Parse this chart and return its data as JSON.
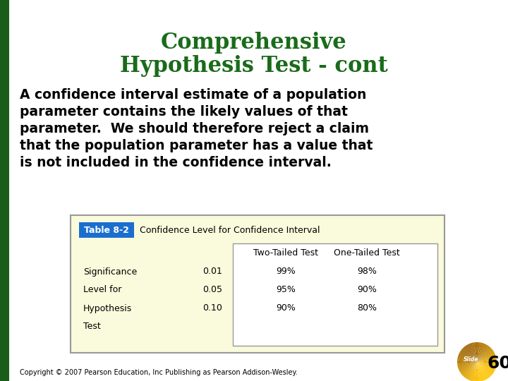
{
  "title_line1": "Comprehensive",
  "title_line2": "Hypothesis Test - cont",
  "title_color": "#1a6b1a",
  "body_text": "A confidence interval estimate of a population\nparameter contains the likely values of that\nparameter.  We should therefore reject a claim\nthat the population parameter has a value that\nis not included in the confidence interval.",
  "table_title_label": "Table 8-2",
  "table_title_label_bg": "#1a6fce",
  "table_title_label_color": "#ffffff",
  "table_title_text": "Confidence Level for Confidence Interval",
  "table_header_col1": "Two-Tailed Test",
  "table_header_col2": "One-Tailed Test",
  "table_rows": [
    [
      "Significance",
      "0.01",
      "99%",
      "98%"
    ],
    [
      "Level for",
      "0.05",
      "95%",
      "90%"
    ],
    [
      "Hypothesis",
      "0.10",
      "90%",
      "80%"
    ],
    [
      "Test",
      "",
      "",
      ""
    ]
  ],
  "table_bg": "#fafadc",
  "table_border": "#999999",
  "table_inner_bg": "#ffffff",
  "copyright": "Copyright © 2007 Pearson Education, Inc Publishing as Pearson Addison-Wesley.",
  "slide_label": "60",
  "background_color": "#ffffff",
  "left_bar_color": "#1a5c1a",
  "body_fontsize": 13.5,
  "title_fontsize": 22
}
